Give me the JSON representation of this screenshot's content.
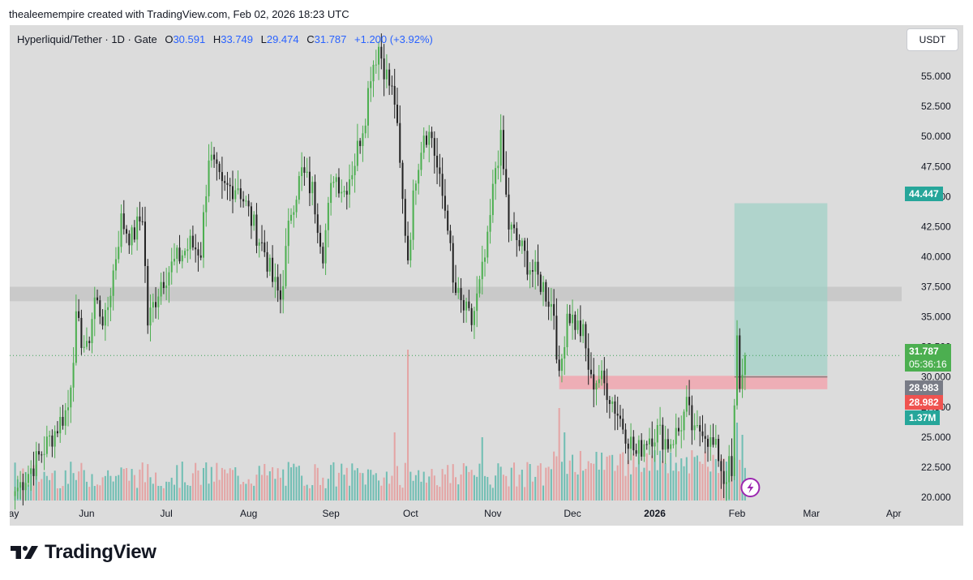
{
  "header": {
    "note": "thealeemempire created with TradingView.com, Feb 02, 2026 18:23 UTC"
  },
  "legend": {
    "symbol": "Hyperliquid/Tether · 1D · Gate",
    "o_label": "O",
    "o_value": "30.591",
    "h_label": "H",
    "h_value": "33.749",
    "l_label": "L",
    "l_value": "29.474",
    "c_label": "C",
    "c_value": "31.787",
    "change": "+1.200 (+3.92%)"
  },
  "currency_badge": "USDT",
  "tags": {
    "target": "44.447",
    "last_price": "31.787",
    "countdown": "05:36:16",
    "ref_price": "28.983",
    "stop_price": "28.982",
    "volume": "1.37M"
  },
  "footer": {
    "brand": "TradingView"
  },
  "colors": {
    "up": "#4caf50",
    "down": "#222222",
    "vol_up": "#5db8ac",
    "vol_down": "#e59a9a",
    "target_zone": "#9dd0c5",
    "stop_zone": "#f2a3ad",
    "resistance_band": "#c5c5c5",
    "last_line": "#3aa055",
    "tag_green": "#26a69a",
    "tag_last": "#4caf50",
    "tag_gray": "#787b86",
    "tag_red": "#ef5350",
    "tag_vol": "#26a69a",
    "lightning": "#9c27b0"
  },
  "chart_data": {
    "type": "candlestick",
    "title": "Hyperliquid/Tether · 1D · Gate",
    "xlabel": "",
    "ylabel": "USDT",
    "ylim": [
      20.0,
      57.5
    ],
    "y_ticks": [
      "20.000",
      "22.500",
      "25.000",
      "27.500",
      "30.000",
      "32.500",
      "35.000",
      "37.500",
      "40.000",
      "42.500",
      "45.000",
      "47.500",
      "50.000",
      "52.500",
      "55.000"
    ],
    "x_start_day": -2,
    "x_end_day": 334,
    "x_ticks": [
      {
        "day": -2,
        "label": "May"
      },
      {
        "day": 27,
        "label": "Jun"
      },
      {
        "day": 57,
        "label": "Jul"
      },
      {
        "day": 88,
        "label": "Aug"
      },
      {
        "day": 119,
        "label": "Sep"
      },
      {
        "day": 149,
        "label": "Oct"
      },
      {
        "day": 180,
        "label": "Nov"
      },
      {
        "day": 210,
        "label": "Dec"
      },
      {
        "day": 241,
        "label": "2026"
      },
      {
        "day": 272,
        "label": "Feb"
      },
      {
        "day": 300,
        "label": "Mar"
      },
      {
        "day": 331,
        "label": "Apr"
      }
    ],
    "price_path": [
      [
        0,
        20.5
      ],
      [
        8,
        23.0
      ],
      [
        15,
        25.5
      ],
      [
        20,
        27.5
      ],
      [
        23,
        34.5
      ],
      [
        27,
        32.0
      ],
      [
        30,
        36.5
      ],
      [
        34,
        34.5
      ],
      [
        40,
        43.0
      ],
      [
        44,
        41.5
      ],
      [
        48,
        43.5
      ],
      [
        50,
        34.5
      ],
      [
        55,
        38.0
      ],
      [
        60,
        39.5
      ],
      [
        66,
        41.0
      ],
      [
        70,
        40.5
      ],
      [
        73,
        48.5
      ],
      [
        78,
        45.5
      ],
      [
        84,
        46.0
      ],
      [
        90,
        42.5
      ],
      [
        94,
        40.5
      ],
      [
        97,
        38.0
      ],
      [
        100,
        36.5
      ],
      [
        104,
        44.0
      ],
      [
        108,
        47.0
      ],
      [
        112,
        45.5
      ],
      [
        116,
        40.5
      ],
      [
        120,
        47.0
      ],
      [
        124,
        45.5
      ],
      [
        128,
        48.0
      ],
      [
        132,
        52.0
      ],
      [
        134,
        55.5
      ],
      [
        137,
        57.5
      ],
      [
        140,
        55.0
      ],
      [
        143,
        53.0
      ],
      [
        146,
        44.5
      ],
      [
        148,
        40.0
      ],
      [
        151,
        47.0
      ],
      [
        154,
        50.5
      ],
      [
        157,
        50.0
      ],
      [
        160,
        46.0
      ],
      [
        163,
        43.0
      ],
      [
        165,
        37.5
      ],
      [
        168,
        36.0
      ],
      [
        172,
        34.5
      ],
      [
        175,
        37.5
      ],
      [
        178,
        41.0
      ],
      [
        181,
        47.5
      ],
      [
        183,
        49.5
      ],
      [
        186,
        42.5
      ],
      [
        190,
        41.0
      ],
      [
        193,
        39.5
      ],
      [
        196,
        38.5
      ],
      [
        199,
        37.5
      ],
      [
        203,
        35.5
      ],
      [
        205,
        29.5
      ],
      [
        208,
        35.5
      ],
      [
        211,
        34.5
      ],
      [
        214,
        33.5
      ],
      [
        217,
        29.5
      ],
      [
        220,
        30.0
      ],
      [
        223,
        29.0
      ],
      [
        226,
        27.5
      ],
      [
        229,
        26.0
      ],
      [
        232,
        24.5
      ],
      [
        234,
        23.5
      ],
      [
        238,
        25.0
      ],
      [
        242,
        25.5
      ],
      [
        246,
        24.5
      ],
      [
        250,
        25.5
      ],
      [
        253,
        27.5
      ],
      [
        256,
        25.0
      ],
      [
        259,
        26.0
      ],
      [
        262,
        24.5
      ],
      [
        265,
        23.5
      ],
      [
        267,
        21.5
      ],
      [
        269,
        22.5
      ],
      [
        270,
        21.5
      ],
      [
        271,
        27.0
      ],
      [
        272,
        33.0
      ],
      [
        273,
        29.5
      ],
      [
        274,
        30.0
      ],
      [
        275,
        31.8
      ]
    ],
    "volume_spikes": [
      {
        "day": 143,
        "value": 1.4
      },
      {
        "day": 148,
        "value": 3.1
      },
      {
        "day": 176,
        "value": 1.3
      },
      {
        "day": 205,
        "value": 1.9
      },
      {
        "day": 207,
        "value": 1.4
      },
      {
        "day": 272,
        "value": 1.6
      },
      {
        "day": 274,
        "value": 1.35
      }
    ],
    "overlays": {
      "resistance_band": {
        "y_low": 36.3,
        "y_high": 37.5,
        "day_start": -2,
        "day_end": 334
      },
      "long_position": {
        "entry": 30.0,
        "stop": 28.982,
        "target": 44.447,
        "day_start": 271,
        "day_end": 306
      },
      "stop_zone_extended": {
        "y_low": 28.982,
        "y_high": 30.1,
        "day_start": 205,
        "day_end": 306
      },
      "last_price_line": 31.787
    }
  }
}
